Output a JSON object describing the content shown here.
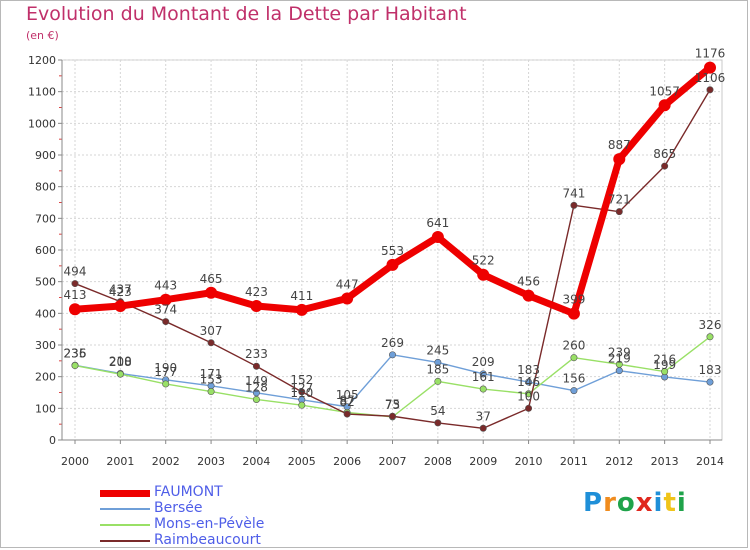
{
  "title": "Evolution du Montant de la Dette par Habitant",
  "unit": "(en €)",
  "logo": "Proxiti",
  "chart_data": {
    "type": "line",
    "x": [
      2000,
      2001,
      2002,
      2003,
      2004,
      2005,
      2006,
      2007,
      2008,
      2009,
      2010,
      2011,
      2012,
      2013,
      2014
    ],
    "ylim": [
      0,
      1200
    ],
    "yticks": [
      0,
      100,
      200,
      300,
      400,
      500,
      600,
      700,
      800,
      900,
      1000,
      1100,
      1200
    ],
    "grid": true,
    "legend_position": "bottom-left",
    "series": [
      {
        "name": "FAUMONT",
        "color": "#ee0000",
        "values": [
          413,
          423,
          443,
          465,
          423,
          411,
          447,
          553,
          641,
          522,
          456,
          399,
          887,
          1057,
          1176
        ]
      },
      {
        "name": "Bersée",
        "color": "#6f9fd8",
        "values": [
          236,
          210,
          190,
          171,
          149,
          127,
          105,
          269,
          245,
          209,
          183,
          156,
          219,
          199,
          183
        ]
      },
      {
        "name": "Mons-en-Pévèle",
        "color": "#99e066",
        "values": [
          235,
          208,
          177,
          153,
          128,
          110,
          87,
          73,
          185,
          161,
          146,
          260,
          239,
          216,
          326
        ]
      },
      {
        "name": "Raimbeaucourt",
        "color": "#7a2a2a",
        "values": [
          494,
          437,
          374,
          307,
          233,
          152,
          82,
          75,
          54,
          37,
          100,
          741,
          721,
          865,
          1106
        ]
      }
    ]
  }
}
